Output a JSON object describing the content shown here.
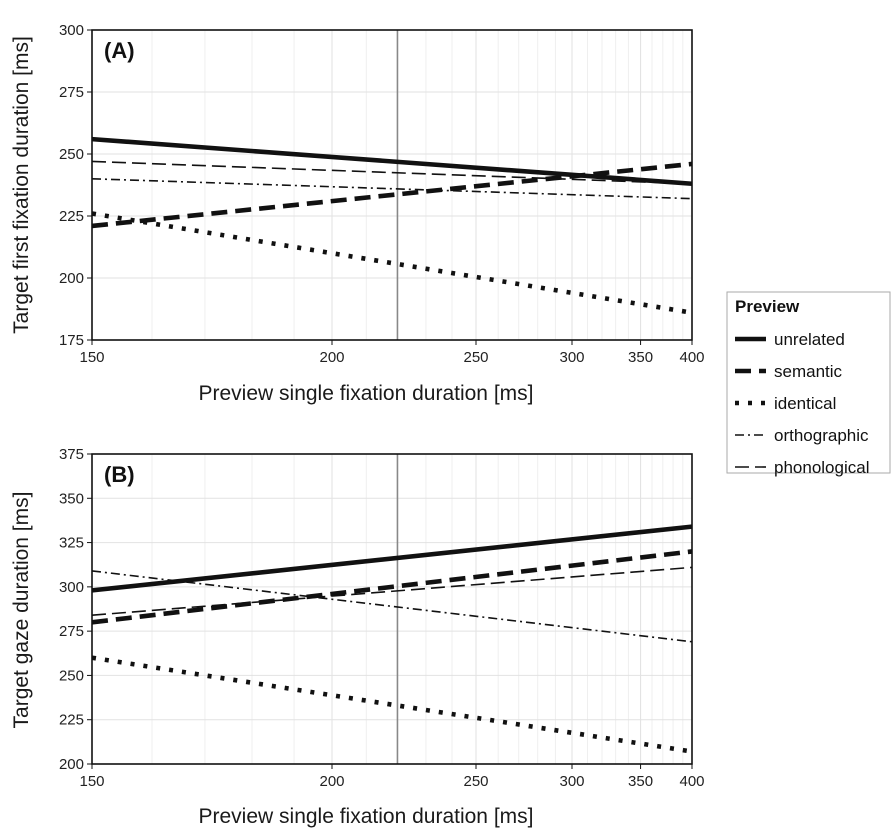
{
  "chart_data": [
    {
      "type": "line",
      "panel": "(A)",
      "xlabel": "Preview single fixation duration [ms]",
      "ylabel": "Target first fixation duration [ms]",
      "x_scale": "reciprocal",
      "xlim": [
        150,
        400
      ],
      "ylim": [
        175,
        300
      ],
      "xticks": [
        150,
        200,
        250,
        300,
        350,
        400
      ],
      "yticks": [
        175,
        200,
        225,
        250,
        275,
        300
      ],
      "reference_line_x": 220,
      "grid": true,
      "series": [
        {
          "name": "unrelated",
          "style": "solid-thick",
          "x": [
            150,
            400
          ],
          "y": [
            256,
            238
          ]
        },
        {
          "name": "semantic",
          "style": "dashed-thick",
          "x": [
            150,
            400
          ],
          "y": [
            221,
            246
          ]
        },
        {
          "name": "identical",
          "style": "dotted-thick",
          "x": [
            150,
            400
          ],
          "y": [
            226,
            186
          ]
        },
        {
          "name": "orthographic",
          "style": "dashdot-thin",
          "x": [
            150,
            400
          ],
          "y": [
            240,
            232
          ]
        },
        {
          "name": "phonological",
          "style": "dashed-thin",
          "x": [
            150,
            400
          ],
          "y": [
            247,
            238
          ]
        }
      ]
    },
    {
      "type": "line",
      "panel": "(B)",
      "xlabel": "Preview single fixation duration [ms]",
      "ylabel": "Target gaze duration [ms]",
      "x_scale": "reciprocal",
      "xlim": [
        150,
        400
      ],
      "ylim": [
        200,
        375
      ],
      "xticks": [
        150,
        200,
        250,
        300,
        350,
        400
      ],
      "yticks": [
        200,
        225,
        250,
        275,
        300,
        325,
        350,
        375
      ],
      "reference_line_x": 220,
      "grid": true,
      "series": [
        {
          "name": "unrelated",
          "style": "solid-thick",
          "x": [
            150,
            400
          ],
          "y": [
            298,
            334
          ]
        },
        {
          "name": "semantic",
          "style": "dashed-thick",
          "x": [
            150,
            400
          ],
          "y": [
            280,
            320
          ]
        },
        {
          "name": "identical",
          "style": "dotted-thick",
          "x": [
            150,
            400
          ],
          "y": [
            260,
            207
          ]
        },
        {
          "name": "orthographic",
          "style": "dashdot-thin",
          "x": [
            150,
            400
          ],
          "y": [
            309,
            269
          ]
        },
        {
          "name": "phonological",
          "style": "dashed-thin",
          "x": [
            150,
            400
          ],
          "y": [
            284,
            311
          ]
        }
      ]
    }
  ],
  "legend": {
    "title": "Preview",
    "placement": "right",
    "items": [
      {
        "label": "unrelated",
        "style": "solid-thick"
      },
      {
        "label": "semantic",
        "style": "dashed-thick"
      },
      {
        "label": "identical",
        "style": "dotted-thick"
      },
      {
        "label": "orthographic",
        "style": "dashdot-thin"
      },
      {
        "label": "phonological",
        "style": "dashed-thin"
      }
    ]
  },
  "colors": {
    "line": "#111111",
    "grid": "#e2e2e2",
    "frame": "#111111",
    "reference_line": "#888888",
    "legend_border": "#aaaaaa"
  }
}
